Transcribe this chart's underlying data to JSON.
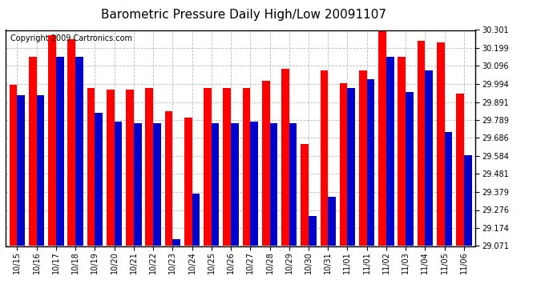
{
  "title": "Barometric Pressure Daily High/Low 20091107",
  "copyright": "Copyright 2009 Cartronics.com",
  "labels": [
    "10/15",
    "10/16",
    "10/17",
    "10/18",
    "10/19",
    "10/20",
    "10/21",
    "10/22",
    "10/23",
    "10/24",
    "10/25",
    "10/26",
    "10/27",
    "10/28",
    "10/29",
    "10/30",
    "10/31",
    "11/01",
    "11/01",
    "11/02",
    "11/03",
    "11/04",
    "11/05",
    "11/06"
  ],
  "highs": [
    29.99,
    30.15,
    30.27,
    30.25,
    29.97,
    29.96,
    29.96,
    29.97,
    29.84,
    29.8,
    29.97,
    29.97,
    29.97,
    30.01,
    30.08,
    29.65,
    30.07,
    30.0,
    30.07,
    30.33,
    30.15,
    30.24,
    30.23,
    29.94
  ],
  "lows": [
    29.93,
    29.93,
    30.15,
    30.15,
    29.83,
    29.78,
    29.77,
    29.77,
    29.11,
    29.37,
    29.77,
    29.77,
    29.78,
    29.77,
    29.77,
    29.24,
    29.35,
    29.97,
    30.02,
    30.15,
    29.95,
    30.07,
    29.72,
    29.59
  ],
  "ymin": 29.071,
  "ymax": 30.301,
  "yticks": [
    29.071,
    29.174,
    29.276,
    29.379,
    29.481,
    29.584,
    29.686,
    29.789,
    29.891,
    29.994,
    30.096,
    30.199,
    30.301
  ],
  "bar_color_high": "#ff0000",
  "bar_color_low": "#0000cc",
  "bg_color": "#ffffff",
  "plot_bg_color": "#ffffff",
  "grid_color": "#bbbbbb",
  "title_fontsize": 11,
  "copyright_fontsize": 7
}
